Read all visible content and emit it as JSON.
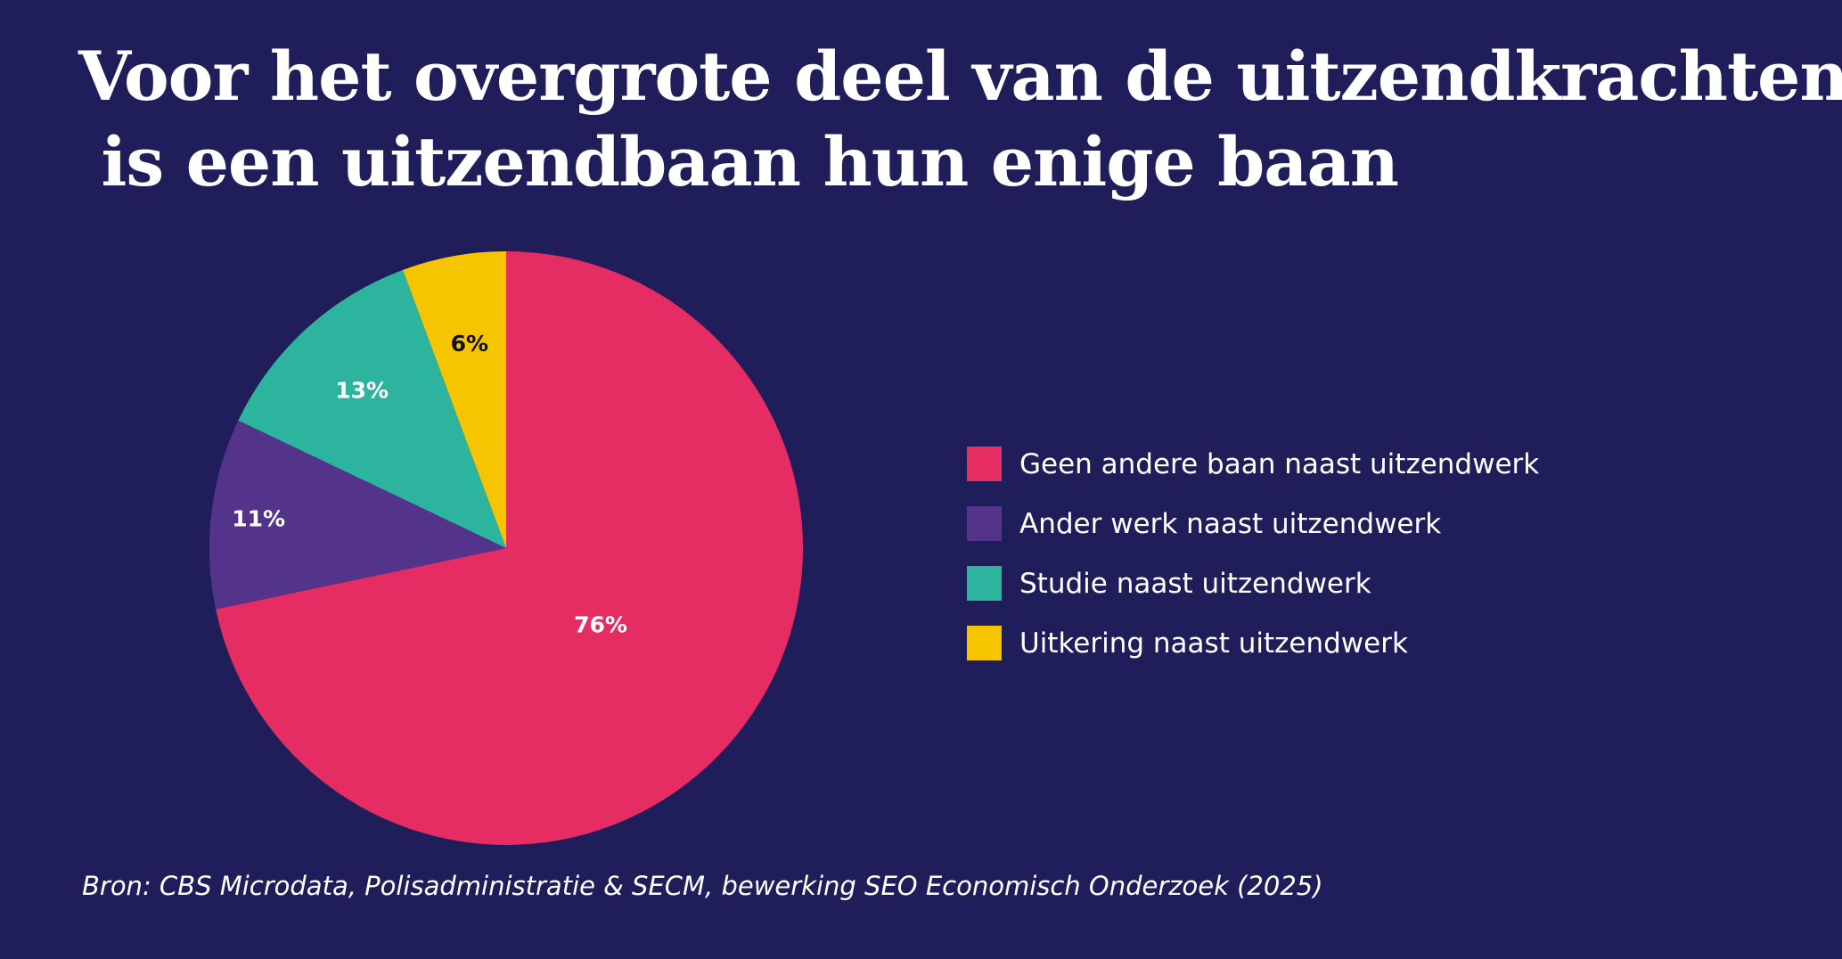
{
  "colors": {
    "background": "#201e5a",
    "text": "#ffffff"
  },
  "title_lines": [
    "Voor het overgrote deel van de uitzendkrachten",
    " is een uitzendbaan hun enige baan"
  ],
  "source": "Bron: CBS Microdata, Polisadministratie & SECM, bewerking SEO Economisch Onderzoek (2025)",
  "chart_data": {
    "type": "pie",
    "title": "Voor het overgrote deel van de uitzendkrachten is een uitzendbaan hun enige baan",
    "unit": "%",
    "legend_position": "right",
    "slices": [
      {
        "label": "Geen andere baan naast uitzendwerk",
        "value": 76,
        "display": "76%",
        "color": "#e62d63",
        "label_color": "#ffffff"
      },
      {
        "label": "Ander werk naast uitzendwerk",
        "value": 11,
        "display": "11%",
        "color": "#54338b",
        "label_color": "#ffffff"
      },
      {
        "label": "Studie naast uitzendwerk",
        "value": 13,
        "display": "13%",
        "color": "#2db49e",
        "label_color": "#ffffff"
      },
      {
        "label": "Uitkering naast uitzendwerk",
        "value": 6,
        "display": "6%",
        "color": "#f7c500",
        "label_color": "#111111"
      }
    ]
  }
}
